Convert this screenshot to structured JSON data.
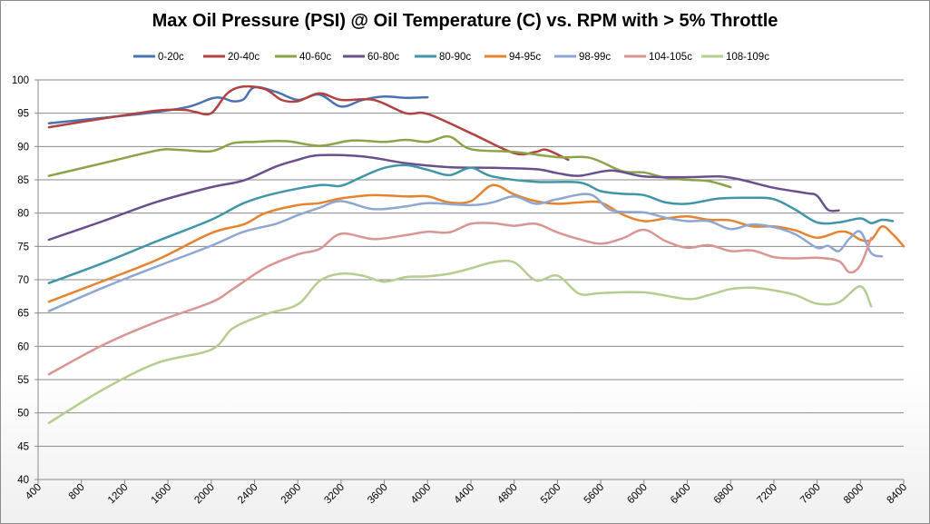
{
  "chart_data": {
    "type": "line",
    "title": "Max Oil Pressure (PSI) @ Oil Temperature (C) vs. RPM with > 5% Throttle",
    "xlabel": "",
    "ylabel": "",
    "xlim": [
      400,
      8400
    ],
    "ylim": [
      40,
      100
    ],
    "x_ticks": [
      400,
      800,
      1200,
      1600,
      2000,
      2400,
      2800,
      3200,
      3600,
      4000,
      4400,
      4800,
      5200,
      5600,
      6000,
      6400,
      6800,
      7200,
      7600,
      8000,
      8400
    ],
    "y_ticks": [
      40,
      45,
      50,
      55,
      60,
      65,
      70,
      75,
      80,
      85,
      90,
      95,
      100
    ],
    "grid": "horizontal",
    "legend_position": "top",
    "series": [
      {
        "name": "0-20c",
        "color": "#4a72b0",
        "points": [
          [
            500,
            93.5
          ],
          [
            1000,
            94.3
          ],
          [
            1500,
            95.2
          ],
          [
            1800,
            96.0
          ],
          [
            2000,
            97.2
          ],
          [
            2100,
            97.3
          ],
          [
            2200,
            96.8
          ],
          [
            2300,
            97.1
          ],
          [
            2400,
            98.9
          ],
          [
            2600,
            98.2
          ],
          [
            2800,
            97.0
          ],
          [
            3000,
            97.8
          ],
          [
            3200,
            96.0
          ],
          [
            3400,
            97.0
          ],
          [
            3600,
            97.5
          ],
          [
            3800,
            97.3
          ],
          [
            4000,
            97.4
          ]
        ]
      },
      {
        "name": "20-40c",
        "color": "#b14340",
        "points": [
          [
            500,
            92.9
          ],
          [
            1000,
            94.2
          ],
          [
            1500,
            95.4
          ],
          [
            1750,
            95.5
          ],
          [
            1850,
            95.2
          ],
          [
            2000,
            95.0
          ],
          [
            2150,
            98.0
          ],
          [
            2300,
            99.0
          ],
          [
            2500,
            98.6
          ],
          [
            2650,
            97.0
          ],
          [
            2800,
            96.8
          ],
          [
            3000,
            98.0
          ],
          [
            3200,
            97.0
          ],
          [
            3500,
            97.0
          ],
          [
            3800,
            95.0
          ],
          [
            4000,
            94.9
          ],
          [
            4400,
            92.0
          ],
          [
            4800,
            89.0
          ],
          [
            5000,
            89.2
          ],
          [
            5100,
            89.5
          ],
          [
            5300,
            88.0
          ]
        ]
      },
      {
        "name": "40-60c",
        "color": "#8ba448",
        "points": [
          [
            500,
            85.6
          ],
          [
            1000,
            87.5
          ],
          [
            1500,
            89.4
          ],
          [
            1700,
            89.5
          ],
          [
            2000,
            89.3
          ],
          [
            2200,
            90.5
          ],
          [
            2400,
            90.7
          ],
          [
            2700,
            90.8
          ],
          [
            3000,
            90.1
          ],
          [
            3300,
            90.9
          ],
          [
            3600,
            90.7
          ],
          [
            3800,
            91.0
          ],
          [
            4000,
            90.7
          ],
          [
            4200,
            91.5
          ],
          [
            4400,
            89.6
          ],
          [
            4800,
            89.2
          ],
          [
            5200,
            88.4
          ],
          [
            5500,
            88.3
          ],
          [
            5800,
            86.3
          ],
          [
            6000,
            86.1
          ],
          [
            6200,
            85.3
          ],
          [
            6400,
            85.0
          ],
          [
            6600,
            84.8
          ],
          [
            6800,
            83.9
          ]
        ]
      },
      {
        "name": "60-80c",
        "color": "#6b4f8d",
        "points": [
          [
            500,
            76.0
          ],
          [
            1000,
            78.8
          ],
          [
            1500,
            81.7
          ],
          [
            2000,
            83.9
          ],
          [
            2300,
            84.9
          ],
          [
            2600,
            87.0
          ],
          [
            2800,
            88.0
          ],
          [
            3000,
            88.7
          ],
          [
            3400,
            88.5
          ],
          [
            3800,
            87.5
          ],
          [
            4200,
            86.9
          ],
          [
            4600,
            86.8
          ],
          [
            5000,
            86.6
          ],
          [
            5200,
            86.0
          ],
          [
            5400,
            85.6
          ],
          [
            5700,
            86.4
          ],
          [
            6000,
            85.5
          ],
          [
            6400,
            85.4
          ],
          [
            6700,
            85.5
          ],
          [
            6900,
            85.0
          ],
          [
            7200,
            83.8
          ],
          [
            7500,
            83.0
          ],
          [
            7600,
            82.6
          ],
          [
            7700,
            80.5
          ],
          [
            7800,
            80.4
          ]
        ]
      },
      {
        "name": "80-90c",
        "color": "#3f96a8",
        "points": [
          [
            500,
            69.5
          ],
          [
            1000,
            72.5
          ],
          [
            1500,
            75.8
          ],
          [
            2000,
            79.0
          ],
          [
            2300,
            81.5
          ],
          [
            2600,
            83.0
          ],
          [
            3000,
            84.2
          ],
          [
            3200,
            84.1
          ],
          [
            3400,
            85.5
          ],
          [
            3600,
            86.8
          ],
          [
            3800,
            87.2
          ],
          [
            4000,
            86.5
          ],
          [
            4200,
            85.7
          ],
          [
            4400,
            86.8
          ],
          [
            4600,
            85.5
          ],
          [
            5000,
            84.7
          ],
          [
            5400,
            84.6
          ],
          [
            5600,
            83.3
          ],
          [
            5800,
            82.9
          ],
          [
            6000,
            82.7
          ],
          [
            6200,
            81.6
          ],
          [
            6400,
            81.4
          ],
          [
            6700,
            82.2
          ],
          [
            7000,
            82.3
          ],
          [
            7200,
            82.1
          ],
          [
            7400,
            80.5
          ],
          [
            7600,
            78.6
          ],
          [
            7800,
            78.6
          ],
          [
            8000,
            79.2
          ],
          [
            8100,
            78.5
          ],
          [
            8200,
            79.0
          ],
          [
            8300,
            78.8
          ]
        ]
      },
      {
        "name": "94-95c",
        "color": "#e5832e",
        "points": [
          [
            500,
            66.7
          ],
          [
            1000,
            69.8
          ],
          [
            1500,
            73.0
          ],
          [
            2000,
            77.0
          ],
          [
            2300,
            78.3
          ],
          [
            2500,
            80.0
          ],
          [
            2800,
            81.2
          ],
          [
            3000,
            81.5
          ],
          [
            3200,
            82.2
          ],
          [
            3500,
            82.7
          ],
          [
            3800,
            82.5
          ],
          [
            4000,
            82.5
          ],
          [
            4200,
            81.6
          ],
          [
            4400,
            81.8
          ],
          [
            4600,
            84.2
          ],
          [
            4800,
            82.8
          ],
          [
            5000,
            81.8
          ],
          [
            5200,
            81.4
          ],
          [
            5400,
            81.6
          ],
          [
            5600,
            81.6
          ],
          [
            5800,
            79.8
          ],
          [
            6000,
            78.8
          ],
          [
            6200,
            79.2
          ],
          [
            6400,
            79.5
          ],
          [
            6600,
            79.0
          ],
          [
            6800,
            78.9
          ],
          [
            7000,
            78.0
          ],
          [
            7200,
            78.0
          ],
          [
            7400,
            77.4
          ],
          [
            7600,
            76.3
          ],
          [
            7800,
            77.2
          ],
          [
            7900,
            77.0
          ],
          [
            8000,
            76.0
          ],
          [
            8100,
            76.0
          ],
          [
            8200,
            78.0
          ],
          [
            8300,
            76.8
          ],
          [
            8400,
            75.0
          ]
        ]
      },
      {
        "name": "98-99c",
        "color": "#8ea7d2",
        "points": [
          [
            500,
            65.3
          ],
          [
            1000,
            68.8
          ],
          [
            1500,
            72.0
          ],
          [
            2000,
            75.1
          ],
          [
            2300,
            77.2
          ],
          [
            2600,
            78.4
          ],
          [
            2800,
            79.7
          ],
          [
            3000,
            80.8
          ],
          [
            3200,
            81.8
          ],
          [
            3500,
            80.6
          ],
          [
            3800,
            81.0
          ],
          [
            4000,
            81.5
          ],
          [
            4400,
            81.2
          ],
          [
            4600,
            81.6
          ],
          [
            4800,
            82.5
          ],
          [
            5000,
            81.4
          ],
          [
            5200,
            82.1
          ],
          [
            5500,
            82.8
          ],
          [
            5700,
            80.4
          ],
          [
            6000,
            80.1
          ],
          [
            6200,
            79.3
          ],
          [
            6400,
            78.8
          ],
          [
            6600,
            78.8
          ],
          [
            6800,
            77.6
          ],
          [
            7000,
            78.3
          ],
          [
            7200,
            77.9
          ],
          [
            7400,
            76.8
          ],
          [
            7600,
            74.8
          ],
          [
            7700,
            75.1
          ],
          [
            7800,
            74.3
          ],
          [
            7900,
            76.2
          ],
          [
            8000,
            77.2
          ],
          [
            8100,
            74.0
          ],
          [
            8200,
            73.5
          ]
        ]
      },
      {
        "name": "104-105c",
        "color": "#d99592",
        "points": [
          [
            500,
            55.8
          ],
          [
            1000,
            60.2
          ],
          [
            1500,
            63.7
          ],
          [
            2000,
            66.6
          ],
          [
            2200,
            68.6
          ],
          [
            2500,
            71.8
          ],
          [
            2800,
            73.8
          ],
          [
            3000,
            74.6
          ],
          [
            3200,
            76.9
          ],
          [
            3500,
            76.1
          ],
          [
            3800,
            76.7
          ],
          [
            4000,
            77.2
          ],
          [
            4200,
            77.1
          ],
          [
            4400,
            78.4
          ],
          [
            4600,
            78.5
          ],
          [
            4800,
            78.1
          ],
          [
            5000,
            78.4
          ],
          [
            5200,
            77.1
          ],
          [
            5400,
            76.1
          ],
          [
            5600,
            75.4
          ],
          [
            5800,
            76.2
          ],
          [
            6000,
            77.5
          ],
          [
            6200,
            75.8
          ],
          [
            6400,
            74.8
          ],
          [
            6600,
            75.2
          ],
          [
            6800,
            74.3
          ],
          [
            7000,
            74.4
          ],
          [
            7200,
            73.4
          ],
          [
            7400,
            73.2
          ],
          [
            7600,
            73.3
          ],
          [
            7800,
            72.8
          ],
          [
            7900,
            71.1
          ],
          [
            8000,
            72.2
          ],
          [
            8100,
            76.3
          ]
        ]
      },
      {
        "name": "108-109c",
        "color": "#b5cd8f",
        "points": [
          [
            500,
            48.5
          ],
          [
            1000,
            53.5
          ],
          [
            1500,
            57.5
          ],
          [
            2000,
            59.5
          ],
          [
            2200,
            62.7
          ],
          [
            2500,
            64.8
          ],
          [
            2800,
            66.3
          ],
          [
            3000,
            69.8
          ],
          [
            3200,
            70.9
          ],
          [
            3400,
            70.6
          ],
          [
            3600,
            69.7
          ],
          [
            3800,
            70.4
          ],
          [
            4000,
            70.5
          ],
          [
            4200,
            70.9
          ],
          [
            4400,
            71.7
          ],
          [
            4600,
            72.6
          ],
          [
            4800,
            72.6
          ],
          [
            5000,
            69.9
          ],
          [
            5200,
            70.6
          ],
          [
            5400,
            67.9
          ],
          [
            5600,
            68.0
          ],
          [
            6000,
            68.1
          ],
          [
            6400,
            67.1
          ],
          [
            6600,
            67.7
          ],
          [
            6800,
            68.6
          ],
          [
            7000,
            68.8
          ],
          [
            7200,
            68.4
          ],
          [
            7400,
            67.7
          ],
          [
            7600,
            66.4
          ],
          [
            7800,
            66.6
          ],
          [
            8000,
            69.0
          ],
          [
            8100,
            66.0
          ]
        ]
      }
    ]
  }
}
